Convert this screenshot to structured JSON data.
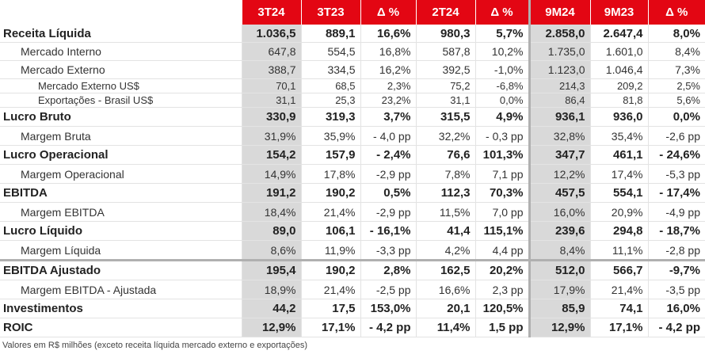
{
  "table": {
    "columns": [
      "3T24",
      "3T23",
      "Δ %",
      "2T24",
      "Δ %",
      "9M24",
      "9M23",
      "Δ %"
    ],
    "rows": [
      {
        "label": "Receita Líquida",
        "cells": [
          "1.036,5",
          "889,1",
          "16,6%",
          "980,3",
          "5,7%",
          "2.858,0",
          "2.647,4",
          "8,0%"
        ]
      },
      {
        "label": "Mercado Interno",
        "cells": [
          "647,8",
          "554,5",
          "16,8%",
          "587,8",
          "10,2%",
          "1.735,0",
          "1.601,0",
          "8,4%"
        ]
      },
      {
        "label": "Mercado Externo",
        "cells": [
          "388,7",
          "334,5",
          "16,2%",
          "392,5",
          "-1,0%",
          "1.123,0",
          "1.046,4",
          "7,3%"
        ]
      },
      {
        "label": "Mercado Externo US$",
        "cells": [
          "70,1",
          "68,5",
          "2,3%",
          "75,2",
          "-6,8%",
          "214,3",
          "209,2",
          "2,5%"
        ]
      },
      {
        "label": "Exportações - Brasil US$",
        "cells": [
          "31,1",
          "25,3",
          "23,2%",
          "31,1",
          "0,0%",
          "86,4",
          "81,8",
          "5,6%"
        ]
      },
      {
        "label": "Lucro Bruto",
        "cells": [
          "330,9",
          "319,3",
          "3,7%",
          "315,5",
          "4,9%",
          "936,1",
          "936,0",
          "0,0%"
        ]
      },
      {
        "label": "Margem Bruta",
        "cells": [
          "31,9%",
          "35,9%",
          "- 4,0 pp",
          "32,2%",
          "- 0,3 pp",
          "32,8%",
          "35,4%",
          "-2,6 pp"
        ]
      },
      {
        "label": "Lucro Operacional",
        "cells": [
          "154,2",
          "157,9",
          "- 2,4%",
          "76,6",
          "101,3%",
          "347,7",
          "461,1",
          "- 24,6%"
        ]
      },
      {
        "label": "Margem Operacional",
        "cells": [
          "14,9%",
          "17,8%",
          "-2,9 pp",
          "7,8%",
          "7,1 pp",
          "12,2%",
          "17,4%",
          "-5,3 pp"
        ]
      },
      {
        "label": "EBITDA",
        "cells": [
          "191,2",
          "190,2",
          "0,5%",
          "112,3",
          "70,3%",
          "457,5",
          "554,1",
          "- 17,4%"
        ]
      },
      {
        "label": "Margem EBITDA",
        "cells": [
          "18,4%",
          "21,4%",
          "-2,9 pp",
          "11,5%",
          "7,0 pp",
          "16,0%",
          "20,9%",
          "-4,9 pp"
        ]
      },
      {
        "label": "Lucro Líquido",
        "cells": [
          "89,0",
          "106,1",
          "- 16,1%",
          "41,4",
          "115,1%",
          "239,6",
          "294,8",
          "- 18,7%"
        ]
      },
      {
        "label": "Margem Líquida",
        "cells": [
          "8,6%",
          "11,9%",
          "-3,3 pp",
          "4,2%",
          "4,4 pp",
          "8,4%",
          "11,1%",
          "-2,8 pp"
        ]
      },
      {
        "label": "EBITDA Ajustado",
        "cells": [
          "195,4",
          "190,2",
          "2,8%",
          "162,5",
          "20,2%",
          "512,0",
          "566,7",
          "-9,7%"
        ]
      },
      {
        "label": "Margem EBITDA - Ajustada",
        "cells": [
          "18,9%",
          "21,4%",
          "-2,5 pp",
          "16,6%",
          "2,3 pp",
          "17,9%",
          "21,4%",
          "-3,5 pp"
        ]
      },
      {
        "label": "Investimentos",
        "cells": [
          "44,2",
          "17,5",
          "153,0%",
          "20,1",
          "120,5%",
          "85,9",
          "74,1",
          "16,0%"
        ]
      },
      {
        "label": "ROIC",
        "cells": [
          "12,9%",
          "17,1%",
          "- 4,2 pp",
          "11,4%",
          "1,5 pp",
          "12,9%",
          "17,1%",
          "- 4,2 pp"
        ]
      }
    ]
  },
  "footnote": "Valores em R$ milhões (exceto receita líquida mercado externo e exportações)"
}
